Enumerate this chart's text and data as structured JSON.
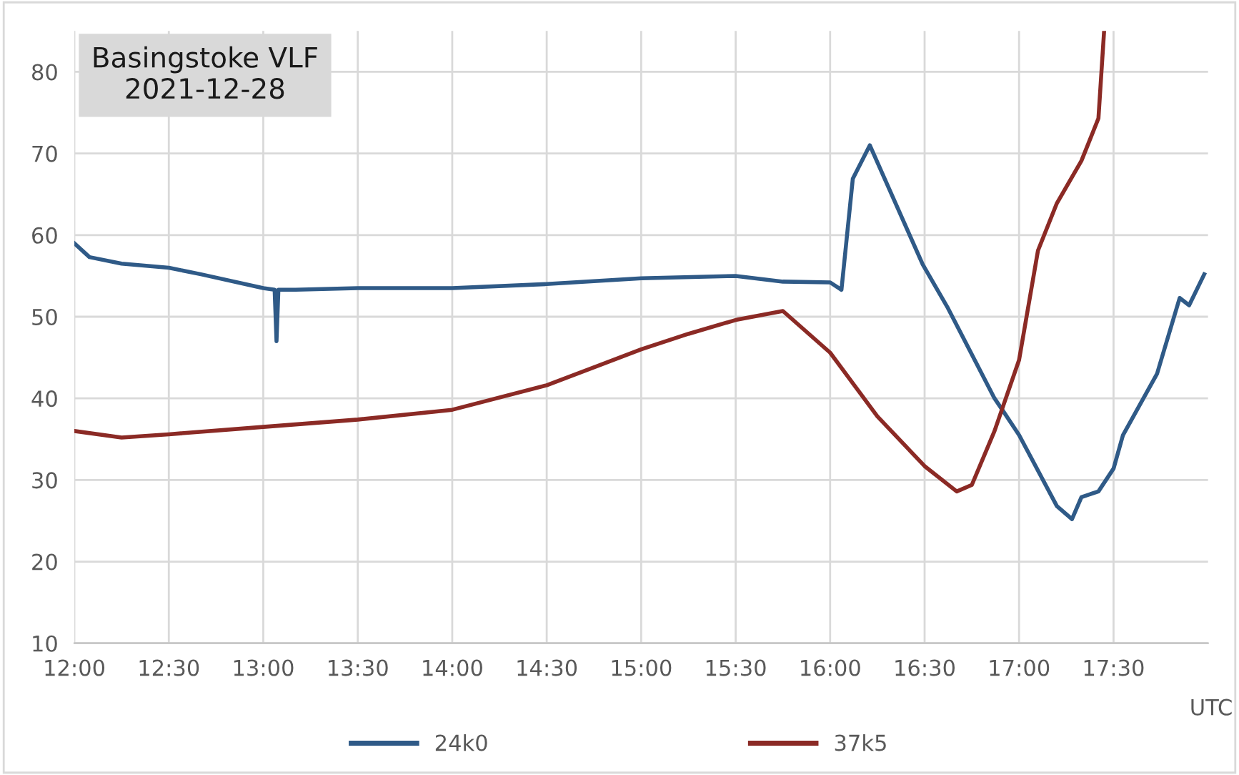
{
  "chart_data": {
    "type": "line",
    "title": "Basingstoke VLF\n2021-12-28",
    "xlabel": "UTC",
    "xlim": [
      12,
      18
    ],
    "ylim": [
      10,
      85
    ],
    "xticks": [
      {
        "value": 12,
        "label": "12:00"
      },
      {
        "value": 12.5,
        "label": "12:30"
      },
      {
        "value": 13,
        "label": "13:00"
      },
      {
        "value": 13.5,
        "label": "13:30"
      },
      {
        "value": 14,
        "label": "14:00"
      },
      {
        "value": 14.5,
        "label": "14:30"
      },
      {
        "value": 15,
        "label": "15:00"
      },
      {
        "value": 15.5,
        "label": "15:30"
      },
      {
        "value": 16,
        "label": "16:00"
      },
      {
        "value": 16.5,
        "label": "16:30"
      },
      {
        "value": 17,
        "label": "17:00"
      },
      {
        "value": 17.5,
        "label": "17:30"
      }
    ],
    "yticks": [
      10,
      20,
      30,
      40,
      50,
      60,
      70,
      80
    ],
    "grid": true,
    "legend": "bottom",
    "marker": "none",
    "line_style": "solid",
    "series": [
      {
        "name": "24k0",
        "color": "#2f5a87",
        "x": [
          12,
          12.08,
          12.25,
          12.5,
          12.67,
          13,
          13.06,
          13.07,
          13.08,
          13.17,
          13.5,
          14,
          14.5,
          15,
          15.5,
          15.75,
          16,
          16.06,
          16.12,
          16.21,
          16.49,
          16.62,
          16.87,
          16.92,
          17,
          17.2,
          17.28,
          17.33,
          17.42,
          17.5,
          17.55,
          17.73,
          17.85,
          17.9,
          17.98
        ],
        "values": [
          59,
          57.3,
          56.5,
          56,
          55.2,
          53.5,
          53.3,
          47,
          53.3,
          53.3,
          53.5,
          53.5,
          54,
          54.7,
          55,
          54.3,
          54.2,
          53.3,
          66.9,
          71,
          56.4,
          51.2,
          40,
          38.3,
          35.5,
          26.8,
          25.2,
          27.9,
          28.6,
          31.4,
          35.5,
          43,
          52.3,
          51.4,
          55.2
        ]
      },
      {
        "name": "37k5",
        "color": "#8b2a25",
        "x": [
          12,
          12.25,
          12.5,
          13,
          13.5,
          14,
          14.5,
          15,
          15.25,
          15.5,
          15.75,
          16,
          16.25,
          16.5,
          16.67,
          16.75,
          16.87,
          17,
          17.1,
          17.2,
          17.33,
          17.42,
          17.45
        ],
        "values": [
          36,
          35.2,
          35.6,
          36.5,
          37.4,
          38.6,
          41.6,
          46,
          47.9,
          49.6,
          50.7,
          45.6,
          37.8,
          31.7,
          28.6,
          29.4,
          36,
          44.7,
          58.1,
          63.9,
          69.1,
          74.3,
          85
        ]
      }
    ]
  }
}
